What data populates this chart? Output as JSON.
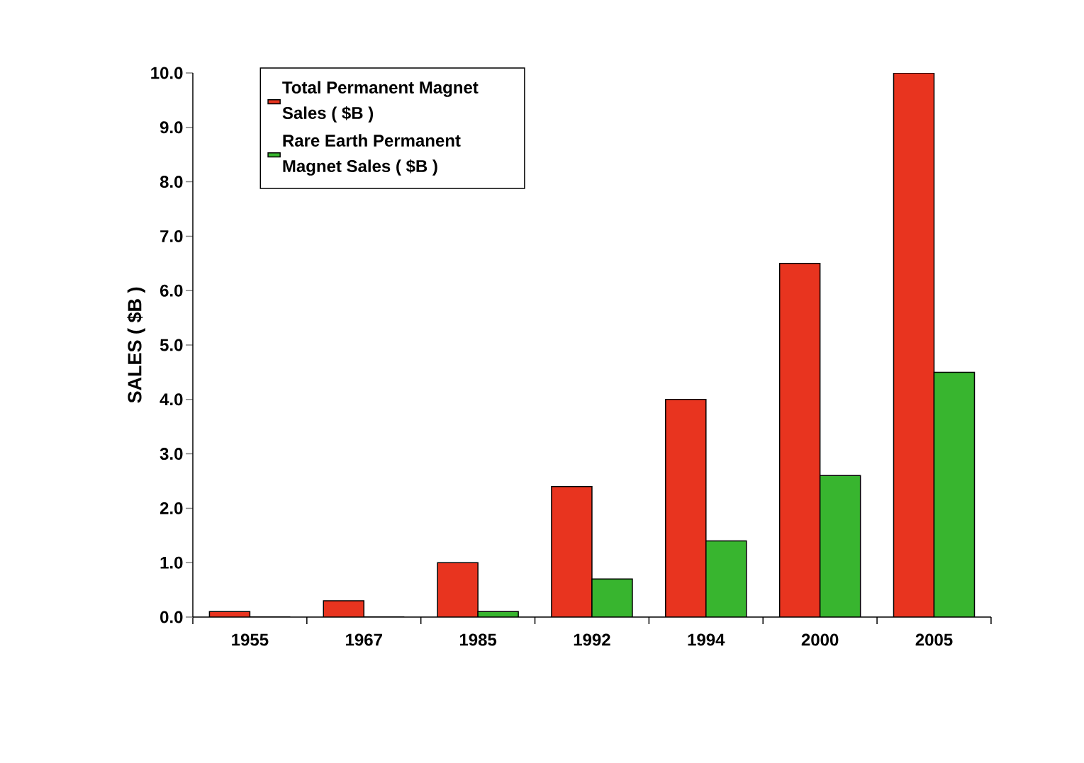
{
  "chart_data": {
    "type": "bar",
    "ylabel": "SALES ( $B )",
    "categories": [
      "1955",
      "1967",
      "1985",
      "1992",
      "1994",
      "2000",
      "2005"
    ],
    "series": [
      {
        "name": "Total Permanent Magnet Sales ( $B )",
        "color": "#e8341f",
        "values": [
          0.1,
          0.3,
          1.0,
          2.4,
          4.0,
          6.5,
          10.0
        ]
      },
      {
        "name": "Rare Earth Permanent Magnet Sales ( $B )",
        "color": "#38b52f",
        "values": [
          0,
          0,
          0.1,
          0.7,
          1.4,
          2.6,
          4.5
        ]
      }
    ],
    "ylim": [
      0,
      10
    ],
    "yticks": [
      {
        "value": 0,
        "label": "0.0"
      },
      {
        "value": 1,
        "label": "1.0"
      },
      {
        "value": 2,
        "label": "2.0"
      },
      {
        "value": 3,
        "label": "3.0"
      },
      {
        "value": 4,
        "label": "4.0"
      },
      {
        "value": 5,
        "label": "5.0"
      },
      {
        "value": 6,
        "label": "6.0"
      },
      {
        "value": 7,
        "label": "7.0"
      },
      {
        "value": 8,
        "label": "8.0"
      },
      {
        "value": 9,
        "label": "9.0"
      },
      {
        "value": 10,
        "label": "10.0"
      }
    ],
    "legend": "top left"
  }
}
